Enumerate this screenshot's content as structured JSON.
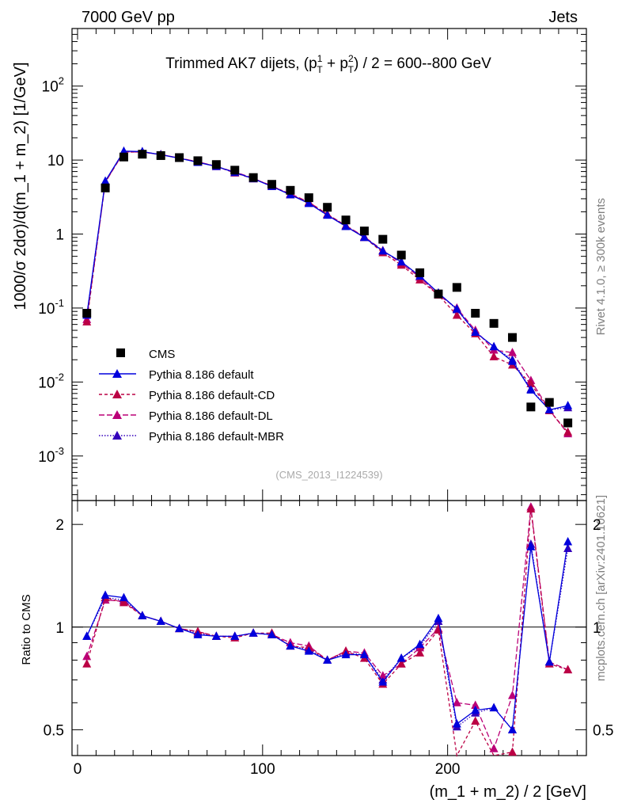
{
  "header": {
    "left": "7000 GeV pp",
    "right": "Jets",
    "side_rivet": "Rivet 4.1.0, ≥ 300k events",
    "side_mcplots": "mcplots.cern.ch [arXiv:2401.10621]",
    "watermark": "(CMS_2013_I1224539)"
  },
  "colors": {
    "data": "#000000",
    "default": "#0000dd",
    "cd": "#bb0044",
    "dl": "#bb0077",
    "mbr": "#3300bb"
  },
  "chart_data": [
    {
      "type": "scatter",
      "title_main": "Trimmed AK7 dijets, (p",
      "title_sup1": "1",
      "title_sub1": "T",
      "title_mid": " + p",
      "title_sup2": "2",
      "title_sub2": "T",
      "title_end": ") / 2 = 600--800 GeV",
      "ylabel": "1000/σ   2dσ)/d(m_1 + m_2) [1/GeV]",
      "yscale": "log",
      "ylim": [
        0.00025,
        600
      ],
      "xlim": [
        -3,
        275
      ],
      "ytick_labels": [
        "10^-3",
        "10^-2",
        "10^-1",
        "1",
        "10",
        "10^2"
      ],
      "legend": [
        "CMS",
        "Pythia 8.186 default",
        "Pythia 8.186 default-CD",
        "Pythia 8.186 default-DL",
        "Pythia 8.186 default-MBR"
      ],
      "x": [
        5,
        15,
        25,
        35,
        45,
        55,
        65,
        75,
        85,
        95,
        105,
        115,
        125,
        135,
        145,
        155,
        165,
        175,
        185,
        195,
        205,
        215,
        225,
        235,
        245,
        255,
        265
      ],
      "series": [
        {
          "name": "CMS",
          "values": [
            0.085,
            4.2,
            11.0,
            12.0,
            11.5,
            10.8,
            9.8,
            8.7,
            7.3,
            5.8,
            4.7,
            3.9,
            3.1,
            2.3,
            1.55,
            1.1,
            0.85,
            0.52,
            0.3,
            0.155,
            0.19,
            0.085,
            0.062,
            0.04,
            0.0046,
            0.0053,
            0.0028
          ]
        },
        {
          "name": "Pythia 8.186 default",
          "values": [
            0.08,
            5.2,
            13.2,
            13.0,
            11.8,
            10.6,
            9.3,
            8.2,
            6.8,
            5.6,
            4.4,
            3.4,
            2.6,
            1.8,
            1.27,
            0.9,
            0.59,
            0.42,
            0.27,
            0.16,
            0.097,
            0.047,
            0.03,
            0.019,
            0.0078,
            0.0042,
            0.0048
          ]
        },
        {
          "name": "Pythia 8.186 default-CD",
          "values": [
            0.065,
            5.1,
            12.8,
            12.9,
            11.8,
            10.7,
            9.4,
            8.2,
            6.7,
            5.6,
            4.5,
            3.4,
            2.7,
            1.85,
            1.3,
            0.9,
            0.56,
            0.38,
            0.24,
            0.15,
            0.08,
            0.045,
            0.022,
            0.017,
            0.0095,
            0.0041,
            0.0021
          ]
        },
        {
          "name": "Pythia 8.186 default-DL",
          "values": [
            0.07,
            5.0,
            12.9,
            12.8,
            11.9,
            10.6,
            9.5,
            8.2,
            6.9,
            5.7,
            4.4,
            3.5,
            2.7,
            1.85,
            1.3,
            0.92,
            0.6,
            0.4,
            0.26,
            0.15,
            0.1,
            0.05,
            0.027,
            0.025,
            0.0105,
            0.0042,
            0.002
          ]
        },
        {
          "name": "Pythia 8.186 default-MBR",
          "values": [
            0.08,
            5.1,
            13.1,
            13.0,
            11.8,
            10.6,
            9.4,
            8.2,
            6.8,
            5.6,
            4.4,
            3.4,
            2.6,
            1.8,
            1.27,
            0.9,
            0.59,
            0.42,
            0.27,
            0.16,
            0.095,
            0.047,
            0.03,
            0.02,
            0.008,
            0.0042,
            0.0045
          ]
        }
      ]
    },
    {
      "type": "line",
      "ylabel": "Ratio to CMS",
      "yscale": "log",
      "ylim": [
        0.42,
        2.35
      ],
      "xlim": [
        -3,
        275
      ],
      "xlabel": "(m_1 + m_2) / 2 [GeV]",
      "xtick_labels": [
        "0",
        "100",
        "200"
      ],
      "ytick_labels": [
        "0.5",
        "1",
        "2"
      ],
      "x": [
        5,
        15,
        25,
        35,
        45,
        55,
        65,
        75,
        85,
        95,
        105,
        115,
        125,
        135,
        145,
        155,
        165,
        175,
        185,
        195,
        205,
        215,
        225,
        235,
        245,
        255,
        265
      ],
      "series": [
        {
          "name": "Pythia 8.186 default",
          "values": [
            0.94,
            1.24,
            1.22,
            1.08,
            1.04,
            0.99,
            0.95,
            0.94,
            0.94,
            0.96,
            0.95,
            0.88,
            0.85,
            0.8,
            0.83,
            0.83,
            0.69,
            0.81,
            0.89,
            1.06,
            0.52,
            0.57,
            0.58,
            0.5,
            1.72,
            0.79,
            1.78
          ]
        },
        {
          "name": "Pythia 8.186 default-CD",
          "values": [
            0.78,
            1.22,
            1.18,
            1.08,
            1.04,
            0.99,
            0.97,
            0.94,
            0.93,
            0.96,
            0.96,
            0.88,
            0.87,
            0.8,
            0.85,
            0.81,
            0.68,
            0.78,
            0.84,
            0.98,
            0.42,
            0.53,
            0.35,
            0.43,
            2.22,
            0.78,
            0.75
          ]
        },
        {
          "name": "Pythia 8.186 default-DL",
          "values": [
            0.82,
            1.2,
            1.19,
            1.08,
            1.04,
            0.99,
            0.97,
            0.94,
            0.94,
            0.96,
            0.95,
            0.9,
            0.88,
            0.8,
            0.85,
            0.84,
            0.72,
            0.78,
            0.87,
            0.99,
            0.6,
            0.59,
            0.44,
            0.63,
            2.25,
            0.79,
            0.75
          ]
        },
        {
          "name": "Pythia 8.186 default-MBR",
          "values": [
            0.94,
            1.22,
            1.2,
            1.08,
            1.04,
            0.99,
            0.96,
            0.94,
            0.94,
            0.96,
            0.95,
            0.88,
            0.86,
            0.8,
            0.84,
            0.83,
            0.7,
            0.81,
            0.88,
            1.04,
            0.51,
            0.56,
            0.58,
            0.5,
            1.75,
            0.79,
            1.7
          ]
        }
      ]
    }
  ]
}
